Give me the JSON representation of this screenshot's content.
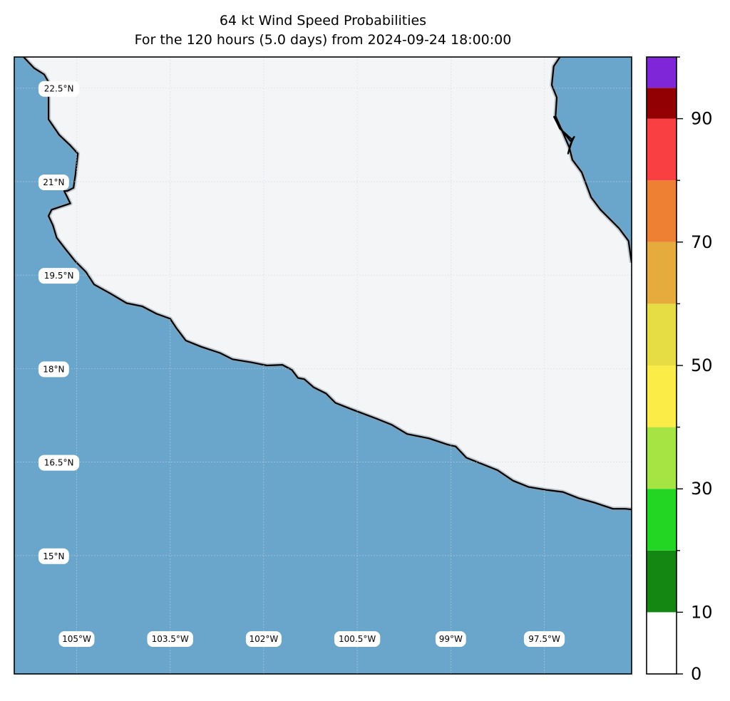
{
  "title": {
    "line1": "64 kt Wind Speed Probabilities",
    "line2": "For the 120 hours (5.0 days) from 2024-09-24 18:00:00"
  },
  "map": {
    "extent": {
      "lon_min": -106.0,
      "lon_max": -96.1,
      "lat_min": 13.1,
      "lat_max": 23.0
    },
    "colors": {
      "ocean": "#6aa6cc",
      "land": "#f4f5f7",
      "coast": "#000000",
      "grid": "#c9d6e0"
    },
    "lat_labels": [
      {
        "lat": 22.5,
        "text": "22.5°N"
      },
      {
        "lat": 21.0,
        "text": "21°N"
      },
      {
        "lat": 19.5,
        "text": "19.5°N"
      },
      {
        "lat": 18.0,
        "text": "18°N"
      },
      {
        "lat": 16.5,
        "text": "16.5°N"
      },
      {
        "lat": 15.0,
        "text": "15°N"
      }
    ],
    "lon_labels": [
      {
        "lon": -105.0,
        "text": "105°W"
      },
      {
        "lon": -103.5,
        "text": "103.5°W"
      },
      {
        "lon": -102.0,
        "text": "102°W"
      },
      {
        "lon": -100.5,
        "text": "100.5°W"
      },
      {
        "lon": -99.0,
        "text": "99°W"
      },
      {
        "lon": -97.5,
        "text": "97.5°W"
      }
    ],
    "west_coast": [
      [
        -105.85,
        23.0
      ],
      [
        -105.68,
        22.82
      ],
      [
        -105.52,
        22.72
      ],
      [
        -105.45,
        22.6
      ],
      [
        -105.45,
        22.0
      ],
      [
        -105.28,
        21.75
      ],
      [
        -105.1,
        21.58
      ],
      [
        -104.98,
        21.45
      ],
      [
        -105.02,
        21.1
      ],
      [
        -105.05,
        20.9
      ],
      [
        -105.15,
        20.85
      ],
      [
        -105.2,
        20.85
      ],
      [
        -105.15,
        20.75
      ],
      [
        -105.1,
        20.65
      ],
      [
        -105.25,
        20.6
      ],
      [
        -105.4,
        20.55
      ],
      [
        -105.45,
        20.45
      ],
      [
        -105.38,
        20.3
      ],
      [
        -105.32,
        20.1
      ],
      [
        -105.18,
        19.92
      ],
      [
        -105.02,
        19.72
      ],
      [
        -104.85,
        19.55
      ],
      [
        -104.72,
        19.35
      ],
      [
        -104.45,
        19.2
      ],
      [
        -104.2,
        19.05
      ],
      [
        -103.95,
        19.0
      ],
      [
        -103.72,
        18.88
      ],
      [
        -103.5,
        18.8
      ],
      [
        -103.4,
        18.65
      ],
      [
        -103.25,
        18.45
      ],
      [
        -103.0,
        18.35
      ],
      [
        -102.7,
        18.25
      ],
      [
        -102.5,
        18.15
      ],
      [
        -102.2,
        18.1
      ],
      [
        -101.95,
        18.05
      ],
      [
        -101.7,
        18.06
      ],
      [
        -101.55,
        17.98
      ],
      [
        -101.45,
        17.85
      ],
      [
        -101.35,
        17.83
      ],
      [
        -101.2,
        17.7
      ],
      [
        -101.0,
        17.6
      ],
      [
        -100.85,
        17.45
      ],
      [
        -100.6,
        17.35
      ],
      [
        -100.2,
        17.2
      ],
      [
        -99.95,
        17.1
      ],
      [
        -99.7,
        16.95
      ],
      [
        -99.35,
        16.88
      ],
      [
        -99.05,
        16.78
      ],
      [
        -98.92,
        16.75
      ],
      [
        -98.75,
        16.57
      ],
      [
        -98.45,
        16.45
      ],
      [
        -98.25,
        16.37
      ],
      [
        -98.0,
        16.2
      ],
      [
        -97.75,
        16.1
      ],
      [
        -97.45,
        16.05
      ],
      [
        -97.2,
        16.02
      ],
      [
        -96.95,
        15.92
      ],
      [
        -96.7,
        15.85
      ],
      [
        -96.55,
        15.8
      ],
      [
        -96.4,
        15.75
      ],
      [
        -96.2,
        15.75
      ],
      [
        -96.1,
        15.74
      ]
    ],
    "east_coast": [
      [
        -97.25,
        23.0
      ],
      [
        -97.35,
        22.85
      ],
      [
        -97.38,
        22.55
      ],
      [
        -97.3,
        22.35
      ],
      [
        -97.32,
        22.05
      ],
      [
        -97.2,
        21.78
      ],
      [
        -97.1,
        21.55
      ],
      [
        -97.05,
        21.35
      ],
      [
        -96.9,
        21.15
      ],
      [
        -96.75,
        20.75
      ],
      [
        -96.6,
        20.55
      ],
      [
        -96.3,
        20.25
      ],
      [
        -96.15,
        20.05
      ],
      [
        -96.1,
        19.7
      ]
    ],
    "lagoon": [
      [
        -97.35,
        22.05
      ],
      [
        -97.2,
        21.8
      ],
      [
        -97.08,
        21.65
      ],
      [
        -97.02,
        21.72
      ],
      [
        -97.08,
        21.6
      ],
      [
        -97.12,
        21.45
      ],
      [
        -97.05,
        21.67
      ],
      [
        -97.25,
        21.85
      ],
      [
        -97.35,
        22.05
      ]
    ]
  },
  "colorbar": {
    "ticks": [
      0,
      10,
      30,
      50,
      70,
      90
    ],
    "bins": [
      {
        "from": 0,
        "to": 10,
        "color": "#ffffff"
      },
      {
        "from": 10,
        "to": 20,
        "color": "#148713"
      },
      {
        "from": 20,
        "to": 30,
        "color": "#23d623"
      },
      {
        "from": 30,
        "to": 40,
        "color": "#a5e443"
      },
      {
        "from": 40,
        "to": 50,
        "color": "#fbec47"
      },
      {
        "from": 50,
        "to": 60,
        "color": "#e6dc43"
      },
      {
        "from": 60,
        "to": 70,
        "color": "#e5ac3d"
      },
      {
        "from": 70,
        "to": 80,
        "color": "#ee8034"
      },
      {
        "from": 80,
        "to": 90,
        "color": "#f93f41"
      },
      {
        "from": 90,
        "to": 95,
        "color": "#930003"
      },
      {
        "from": 95,
        "to": 100,
        "color": "#7f26d9"
      }
    ]
  }
}
